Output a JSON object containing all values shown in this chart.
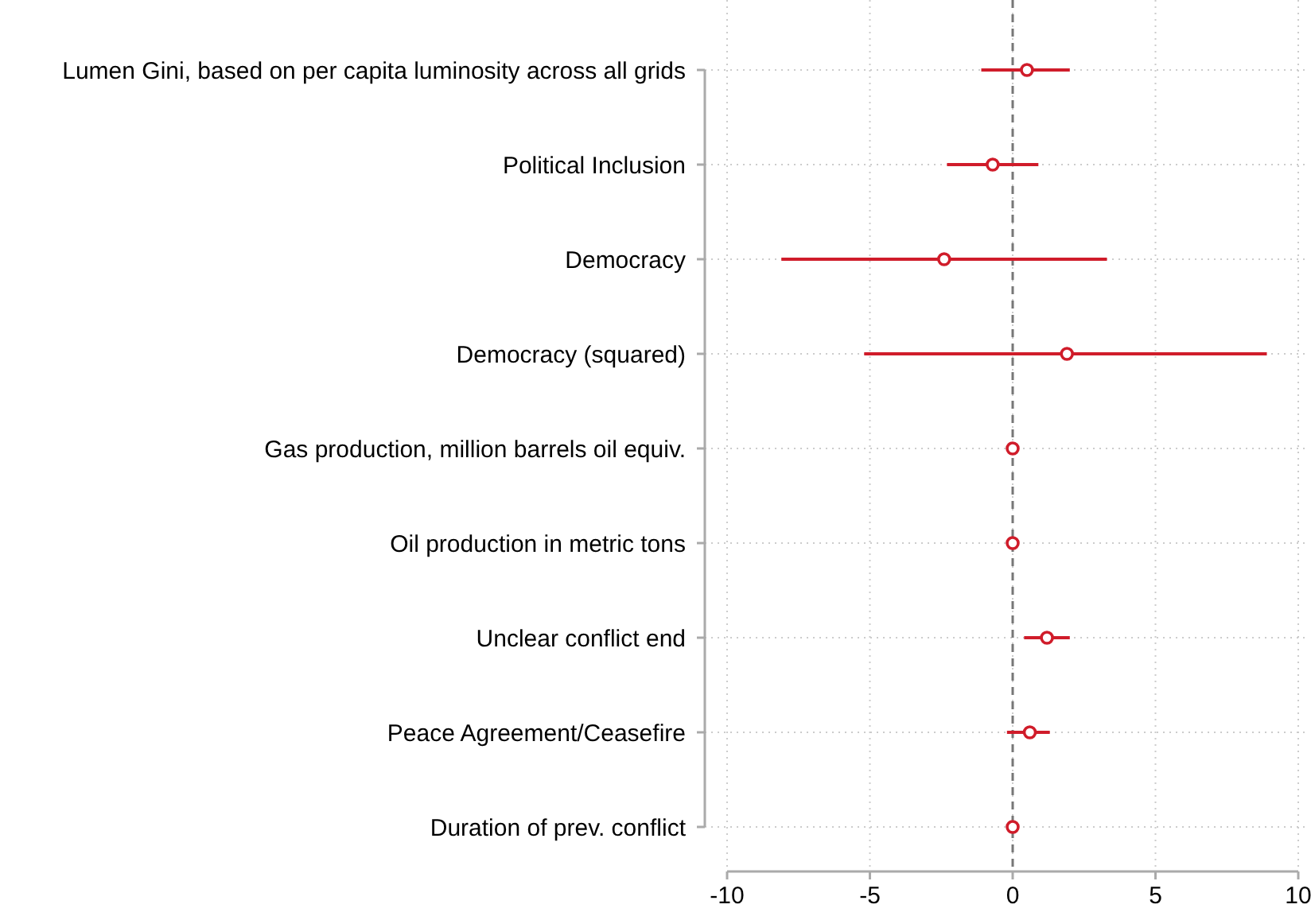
{
  "chart_data": {
    "type": "scatter",
    "orientation": "horizontal",
    "categories": [
      "Lumen Gini, based on per capita luminosity across all grids",
      "Political Inclusion",
      "Democracy",
      "Democracy (squared)",
      "Gas production, million barrels oil equiv.",
      "Oil production in metric tons",
      "Unclear conflict end",
      "Peace Agreement/Ceasefire",
      "Duration of prev. conflict"
    ],
    "values": [
      0.5,
      -0.7,
      -2.4,
      1.9,
      0,
      0,
      1.2,
      0.6,
      0
    ],
    "errors": [
      [
        -1.1,
        2.0
      ],
      [
        -2.3,
        0.9
      ],
      [
        -8.1,
        3.3
      ],
      [
        -5.2,
        8.9
      ],
      null,
      null,
      [
        0.4,
        2.0
      ],
      [
        -0.2,
        1.3
      ],
      null
    ],
    "color": "#d01c2a",
    "marker": "circle",
    "xlim": [
      -10,
      10
    ],
    "xticks": [
      -10,
      -5,
      0,
      5,
      10
    ],
    "grid": true,
    "ref_lines": [
      {
        "axis": "x",
        "value": 0,
        "color": "#777777",
        "line_style": "dashed"
      }
    ]
  }
}
